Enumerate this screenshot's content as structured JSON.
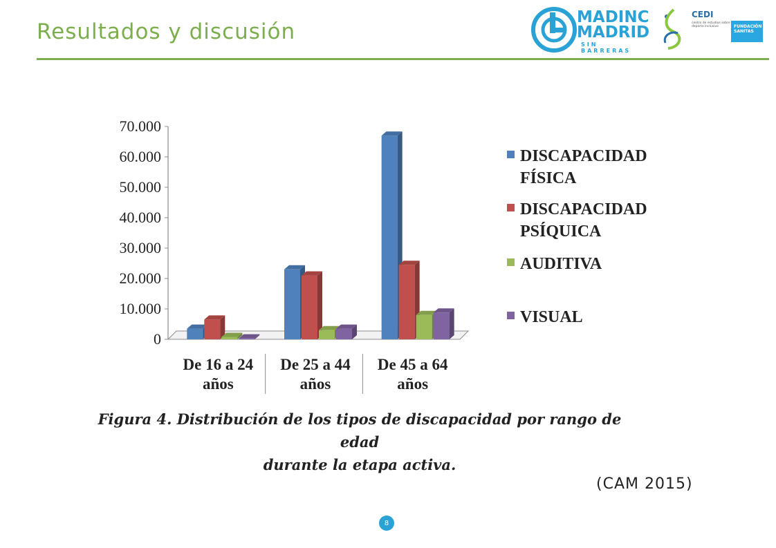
{
  "slide": {
    "title": "Resultados y discusión",
    "caption_line1": "Figura 4. Distribución de los tipos de discapacidad por rango de edad",
    "caption_line2": "durante la etapa activa.",
    "source": "(CAM 2015)",
    "page_number": "8"
  },
  "logos": {
    "madinc_line1": "MADINC",
    "madinc_line2": "MADRID",
    "madinc_sub": "SIN BARRERAS",
    "cedi": "CEDI",
    "cedi_sub": "centro de estudios sobre deporte inclusivo",
    "sanitas_line1": "FUNDACIÓN",
    "sanitas_line2": "SANITAS"
  },
  "colors": {
    "accent": "#7cae4f",
    "brand_blue": "#2aa2d6"
  },
  "chart_data": {
    "type": "bar",
    "title": "",
    "xlabel": "",
    "ylabel": "",
    "ylim": [
      0,
      70000
    ],
    "y_ticks": [
      "0",
      "10.000",
      "20.000",
      "30.000",
      "40.000",
      "50.000",
      "60.000",
      "70.000"
    ],
    "categories": [
      [
        "De 16 a 24",
        "años"
      ],
      [
        "De 25 a 44",
        "años"
      ],
      [
        "De 45 a 64",
        "años"
      ]
    ],
    "series": [
      {
        "name": [
          "DISCAPACIDAD",
          "FÍSICA"
        ],
        "color": "#4f81bd",
        "values": [
          3500,
          23000,
          67000
        ]
      },
      {
        "name": [
          "DISCAPACIDAD",
          "PSÍQUICA"
        ],
        "color": "#c0504d",
        "values": [
          6500,
          21000,
          24500
        ]
      },
      {
        "name": [
          "AUDITIVA"
        ],
        "color": "#9bbb59",
        "values": [
          800,
          3000,
          8000
        ]
      },
      {
        "name": [
          "VISUAL"
        ],
        "color": "#8064a2",
        "values": [
          300,
          3500,
          8800
        ]
      }
    ],
    "three_d": true,
    "grid": false,
    "legend_position": "right"
  }
}
